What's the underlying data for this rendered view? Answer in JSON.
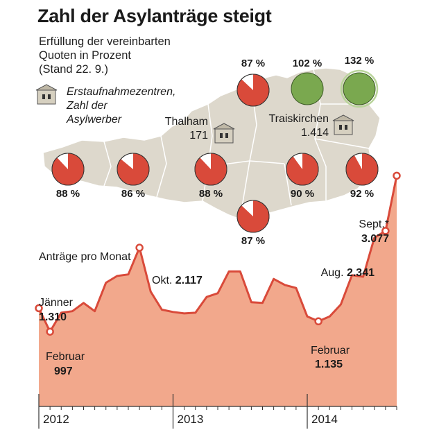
{
  "title": "Zahl der Asylanträge steigt",
  "subtitle": [
    "Erfüllung der vereinbarten",
    "Quoten in Prozent",
    "(Stand 22. 9.)"
  ],
  "legend": [
    "Erstaufnahmezentren,",
    "Zahl der",
    "Asylwerber"
  ],
  "colors": {
    "fill": "#f2a88c",
    "line": "#d94a3a",
    "point": "#d94a3a",
    "map": "#ddd8cc",
    "pie_red": "#d94a3a",
    "pie_green": "#7aa84f",
    "axis": "#333333"
  },
  "centers": [
    {
      "name": "Thalham",
      "count": "171"
    },
    {
      "name": "Traiskirchen",
      "count": "1.414"
    }
  ],
  "quotas": [
    {
      "label": "88 %",
      "value": 88
    },
    {
      "label": "86 %",
      "value": 86
    },
    {
      "label": "88 %",
      "value": 88
    },
    {
      "label": "87 %",
      "value": 87
    },
    {
      "label": "87 %",
      "value": 87
    },
    {
      "label": "90 %",
      "value": 90
    },
    {
      "label": "92 %",
      "value": 92
    },
    {
      "label": "102 %",
      "value": 102
    },
    {
      "label": "132 %",
      "value": 132
    }
  ],
  "chart_data": {
    "type": "area",
    "title": "Anträge pro Monat",
    "year_labels": [
      "2012",
      "2013",
      "2014"
    ],
    "x": [
      "2012-01",
      "2012-02",
      "2012-03",
      "2012-04",
      "2012-05",
      "2012-06",
      "2012-07",
      "2012-08",
      "2012-09",
      "2012-10",
      "2012-11",
      "2012-12",
      "2013-01",
      "2013-02",
      "2013-03",
      "2013-04",
      "2013-05",
      "2013-06",
      "2013-07",
      "2013-08",
      "2013-09",
      "2013-10",
      "2013-11",
      "2013-12",
      "2014-01",
      "2014-02",
      "2014-03",
      "2014-04",
      "2014-05",
      "2014-06",
      "2014-07",
      "2014-08",
      "2014-09"
    ],
    "values": [
      1310,
      997,
      1250,
      1270,
      1380,
      1270,
      1650,
      1740,
      1760,
      2117,
      1530,
      1290,
      1260,
      1240,
      1250,
      1460,
      1510,
      1800,
      1800,
      1390,
      1380,
      1700,
      1620,
      1580,
      1200,
      1135,
      1200,
      1360,
      1750,
      1730,
      2250,
      2341,
      3077
    ],
    "annotations": [
      {
        "label": "Jänner",
        "value": "1.310"
      },
      {
        "label": "Februar",
        "value": "997"
      },
      {
        "label": "Okt.",
        "value": "2.117"
      },
      {
        "label": "Februar",
        "value": "1.135"
      },
      {
        "label": "Aug.",
        "value": "2.341"
      },
      {
        "label": "Sept.*",
        "value": "3.077"
      }
    ]
  }
}
